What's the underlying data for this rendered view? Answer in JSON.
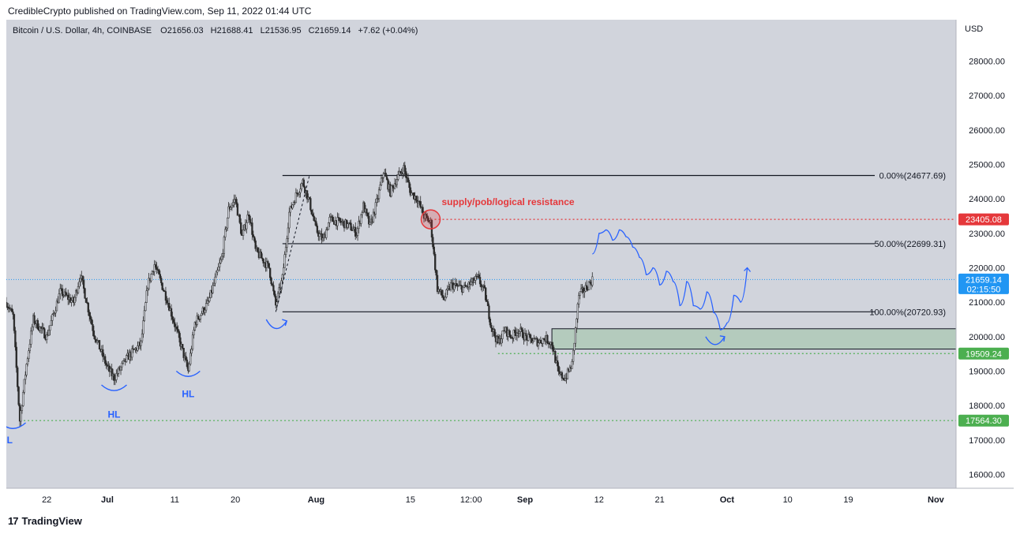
{
  "header": {
    "published": "CredibleCrypto published on TradingView.com, Sep 11, 2022 01:44 UTC"
  },
  "legend": {
    "symbol": "Bitcoin / U.S. Dollar, 4h, COINBASE",
    "o_label": "O",
    "o": "21656.03",
    "h_label": "H",
    "h": "21688.41",
    "l_label": "L",
    "l": "21536.95",
    "c_label": "C",
    "c": "21659.14",
    "change": "+7.62 (+0.04%)"
  },
  "footer": {
    "brand": "TradingView"
  },
  "colors": {
    "plot_bg": "#d1d4dc",
    "candle": "#2b2b2b",
    "red": "#e5383b",
    "green": "#4caf50",
    "blue": "#2962ff",
    "current": "#2196f3",
    "fib_line": "#131722"
  },
  "chart_data": {
    "type": "line",
    "title": "Bitcoin / U.S. Dollar, 4h, COINBASE",
    "currency_label": "USD",
    "xlabel": "",
    "ylabel": "",
    "ylim": [
      15600,
      29200
    ],
    "y_ticks": [
      16000,
      17000,
      18000,
      19000,
      20000,
      21000,
      22000,
      23000,
      24000,
      25000,
      26000,
      27000,
      28000
    ],
    "x_ticks": [
      {
        "label": "22",
        "date": "2022-06-22"
      },
      {
        "label": "Jul",
        "date": "2022-07-01"
      },
      {
        "label": "11",
        "date": "2022-07-11"
      },
      {
        "label": "20",
        "date": "2022-07-20"
      },
      {
        "label": "Aug",
        "date": "2022-08-01"
      },
      {
        "label": "15",
        "date": "2022-08-15"
      },
      {
        "label": "12:00",
        "date": "2022-08-24"
      },
      {
        "label": "Sep",
        "date": "2022-09-01"
      },
      {
        "label": "12",
        "date": "2022-09-12"
      },
      {
        "label": "21",
        "date": "2022-09-21"
      },
      {
        "label": "Oct",
        "date": "2022-10-01"
      },
      {
        "label": "10",
        "date": "2022-10-10"
      },
      {
        "label": "19",
        "date": "2022-10-19"
      },
      {
        "label": "Nov",
        "date": "2022-11-01"
      }
    ],
    "price_path": [
      [
        "2022-06-16",
        21000
      ],
      [
        "2022-06-17",
        20600
      ],
      [
        "2022-06-18",
        17564
      ],
      [
        "2022-06-19",
        19200
      ],
      [
        "2022-06-20",
        20500
      ],
      [
        "2022-06-22",
        20000
      ],
      [
        "2022-06-24",
        21300
      ],
      [
        "2022-06-26",
        21000
      ],
      [
        "2022-06-27",
        21800
      ],
      [
        "2022-06-29",
        20100
      ],
      [
        "2022-07-01",
        19100
      ],
      [
        "2022-07-02",
        18800
      ],
      [
        "2022-07-04",
        19400
      ],
      [
        "2022-07-06",
        19800
      ],
      [
        "2022-07-07",
        21500
      ],
      [
        "2022-07-08",
        22100
      ],
      [
        "2022-07-10",
        21000
      ],
      [
        "2022-07-12",
        19700
      ],
      [
        "2022-07-13",
        19000
      ],
      [
        "2022-07-14",
        20400
      ],
      [
        "2022-07-16",
        21000
      ],
      [
        "2022-07-18",
        22300
      ],
      [
        "2022-07-19",
        23700
      ],
      [
        "2022-07-20",
        24000
      ],
      [
        "2022-07-21",
        22900
      ],
      [
        "2022-07-22",
        23600
      ],
      [
        "2022-07-23",
        22500
      ],
      [
        "2022-07-25",
        22000
      ],
      [
        "2022-07-26",
        20900
      ],
      [
        "2022-07-27",
        21700
      ],
      [
        "2022-07-28",
        23600
      ],
      [
        "2022-07-29",
        24100
      ],
      [
        "2022-07-30",
        24500
      ],
      [
        "2022-07-31",
        23900
      ],
      [
        "2022-08-01",
        23100
      ],
      [
        "2022-08-02",
        22800
      ],
      [
        "2022-08-03",
        23400
      ],
      [
        "2022-08-05",
        23300
      ],
      [
        "2022-08-06",
        23200
      ],
      [
        "2022-08-07",
        23000
      ],
      [
        "2022-08-08",
        23800
      ],
      [
        "2022-08-09",
        23200
      ],
      [
        "2022-08-10",
        23900
      ],
      [
        "2022-08-11",
        24800
      ],
      [
        "2022-08-12",
        24200
      ],
      [
        "2022-08-13",
        24600
      ],
      [
        "2022-08-14",
        24900
      ],
      [
        "2022-08-15",
        24200
      ],
      [
        "2022-08-16",
        24000
      ],
      [
        "2022-08-17",
        23500
      ],
      [
        "2022-08-18",
        23300
      ],
      [
        "2022-08-19",
        21400
      ],
      [
        "2022-08-20",
        21100
      ],
      [
        "2022-08-21",
        21500
      ],
      [
        "2022-08-23",
        21400
      ],
      [
        "2022-08-25",
        21700
      ],
      [
        "2022-08-26",
        21300
      ],
      [
        "2022-08-27",
        20300
      ],
      [
        "2022-08-28",
        19800
      ],
      [
        "2022-08-29",
        20200
      ],
      [
        "2022-08-30",
        20000
      ],
      [
        "2022-08-31",
        20200
      ],
      [
        "2022-09-01",
        20000
      ],
      [
        "2022-09-02",
        19900
      ],
      [
        "2022-09-03",
        19850
      ],
      [
        "2022-09-04",
        19950
      ],
      [
        "2022-09-05",
        19800
      ],
      [
        "2022-09-06",
        18900
      ],
      [
        "2022-09-07",
        18800
      ],
      [
        "2022-09-08",
        19200
      ],
      [
        "2022-09-09",
        21200
      ],
      [
        "2022-09-10",
        21400
      ],
      [
        "2022-09-11",
        21659
      ]
    ],
    "levels": [
      {
        "label": "0.00%(24677.69)",
        "value": 24677.69,
        "color": "#131722",
        "style": "solid"
      },
      {
        "label": "50.00%(22699.31)",
        "value": 22699.31,
        "color": "#131722",
        "style": "solid"
      },
      {
        "label": "100.00%(20720.93)",
        "value": 20720.93,
        "color": "#131722",
        "style": "solid"
      },
      {
        "label": "",
        "value": 23405.08,
        "color": "#e5383b",
        "style": "dotted"
      },
      {
        "label": "",
        "value": 19509.24,
        "color": "#4caf50",
        "style": "dotted"
      },
      {
        "label": "",
        "value": 17564.3,
        "color": "#4caf50",
        "style": "dotted"
      },
      {
        "label": "",
        "value": 21659.14,
        "color": "#2196f3",
        "style": "dotted"
      }
    ],
    "price_tags": [
      {
        "text": "23405.08",
        "value": 23405.08,
        "color": "#e5383b"
      },
      {
        "text": "21659.14",
        "sub": "02:15:50",
        "value": 21659.14,
        "color": "#2196f3"
      },
      {
        "text": "19509.24",
        "value": 19509.24,
        "color": "#4caf50"
      },
      {
        "text": "17564.30",
        "value": 17564.3,
        "color": "#4caf50"
      }
    ],
    "zone": {
      "date_start": "2022-09-05",
      "date_end": "2022-11-04",
      "top": 20230,
      "bottom": 19640
    },
    "annotations": [
      {
        "text": "supply/pob/logical resistance",
        "date": "2022-08-18",
        "value": 23820
      },
      {
        "text": "HL",
        "date": "2022-06-16",
        "value": 16900
      },
      {
        "text": "HL",
        "date": "2022-07-02",
        "value": 17650
      },
      {
        "text": "HL",
        "date": "2022-07-13",
        "value": 18250
      }
    ]
  }
}
